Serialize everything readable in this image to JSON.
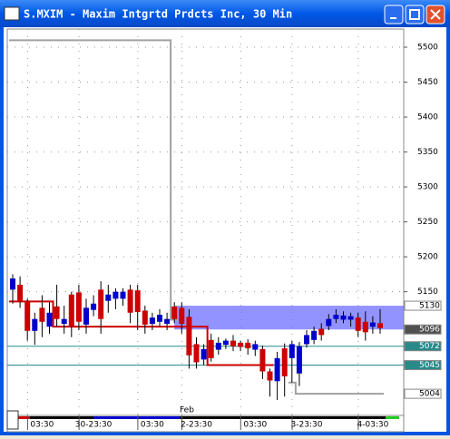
{
  "chart_data": {
    "type": "candlestick",
    "title": "S.MXIM - Maxim Intgrtd Prdcts Inc, 30 Min",
    "categories": [
      null,
      null,
      null,
      null,
      "03:30",
      null,
      null,
      null,
      null,
      null,
      null,
      "30-23:30",
      null,
      null,
      null,
      null,
      null,
      null,
      null,
      "03:30",
      null,
      null,
      null,
      null,
      null,
      "2-23:30",
      null,
      null,
      null,
      null,
      null,
      null,
      null,
      "03:30",
      null,
      null,
      null,
      null,
      null,
      null,
      "3-23:30",
      null,
      null,
      null,
      null,
      null,
      null,
      null,
      null,
      "4-03:30",
      null
    ],
    "annotation": "Feb",
    "open": [
      5153,
      5160,
      5136,
      5094,
      5127,
      5100,
      5129,
      5104,
      5146,
      5149,
      5103,
      5124,
      5153,
      5137,
      5140,
      5140,
      5153,
      5152,
      5123,
      5104,
      5107,
      5104,
      5129,
      5127,
      5114,
      5075,
      5053,
      5081,
      5067,
      5074,
      5080,
      5077,
      5077,
      5067,
      5068,
      5036,
      5022,
      5069,
      5055,
      5033,
      5075,
      5081,
      5097,
      5101,
      5111,
      5110,
      5110,
      5113,
      5107,
      5100,
      5105
    ],
    "high": [
      5175,
      5172,
      5140,
      5120,
      5145,
      5135,
      5160,
      5130,
      5150,
      5160,
      5140,
      5145,
      5165,
      5160,
      5155,
      5155,
      5160,
      5160,
      5130,
      5120,
      5125,
      5120,
      5135,
      5135,
      5125,
      5085,
      5075,
      5090,
      5085,
      5083,
      5088,
      5080,
      5082,
      5080,
      5073,
      5040,
      5064,
      5076,
      5080,
      5078,
      5095,
      5100,
      5105,
      5118,
      5125,
      5122,
      5120,
      5120,
      5122,
      5115,
      5125
    ],
    "low": [
      5133,
      5127,
      5080,
      5074,
      5085,
      5090,
      5100,
      5090,
      5085,
      5095,
      5090,
      5115,
      5090,
      5120,
      5125,
      5130,
      5105,
      5095,
      5090,
      5095,
      5100,
      5095,
      5105,
      5090,
      5040,
      5040,
      5045,
      5050,
      5060,
      5068,
      5065,
      5065,
      5060,
      5058,
      5025,
      5000,
      4995,
      5000,
      5020,
      5015,
      5070,
      5075,
      5080,
      5095,
      5105,
      5105,
      5100,
      5085,
      5080,
      5090,
      5090
    ],
    "close": [
      5169,
      5136,
      5094,
      5111,
      5107,
      5120,
      5111,
      5111,
      5101,
      5107,
      5127,
      5133,
      5111,
      5146,
      5150,
      5150,
      5120,
      5121,
      5103,
      5113,
      5117,
      5111,
      5111,
      5104,
      5059,
      5049,
      5068,
      5055,
      5077,
      5080,
      5072,
      5071,
      5069,
      5075,
      5036,
      5023,
      5055,
      5029,
      5075,
      5072,
      5088,
      5094,
      5088,
      5111,
      5117,
      5116,
      5115,
      5094,
      5092,
      5106,
      5098
    ],
    "up_color": "#0000cc",
    "down_color": "#cc0000",
    "lines": [
      {
        "color": "#cc0000",
        "values": [
          5136,
          5136,
          5136,
          5136,
          5136,
          5136,
          5100,
          5100,
          5100,
          5100,
          5100,
          5100,
          5100,
          5100,
          5100,
          5100,
          5100,
          5100,
          5100,
          5100,
          5100,
          5100,
          5100,
          5100,
          5100,
          5100,
          5100,
          5045,
          5045,
          5045,
          5045,
          5045,
          5045,
          5045,
          5045,
          5045,
          null,
          null,
          null,
          null,
          null,
          null,
          null,
          null,
          null,
          null,
          null,
          null,
          null,
          null,
          null
        ]
      },
      {
        "color": "#a0a0a0",
        "values": [
          5510,
          5510,
          5510,
          5510,
          5510,
          5510,
          5510,
          5510,
          5510,
          5510,
          5510,
          5510,
          5510,
          5510,
          5510,
          5510,
          5510,
          5510,
          5510,
          5510,
          5510,
          5510,
          5110,
          null,
          null,
          null,
          null,
          null,
          null,
          null,
          null,
          null,
          null,
          null,
          null,
          null,
          null,
          null,
          5020,
          5004,
          5004,
          5004,
          5004,
          5004,
          5004,
          5004,
          5004,
          5004,
          5004,
          5004,
          5004
        ]
      }
    ],
    "price_markers": [
      {
        "value": 5130,
        "color": "#ffffff"
      },
      {
        "value": 5096,
        "color": "#505050"
      },
      {
        "value": 5072,
        "color": "#2a8a8a"
      },
      {
        "value": 5045,
        "color": "#2a8a8a"
      },
      {
        "value": 5004,
        "color": "#ffffff"
      }
    ],
    "band_color": "#6f6fff",
    "ylim": [
      4973,
      5526
    ],
    "yticks": [
      5150,
      5200,
      5250,
      5300,
      5350,
      5400,
      5450,
      5500
    ],
    "grid": true
  }
}
